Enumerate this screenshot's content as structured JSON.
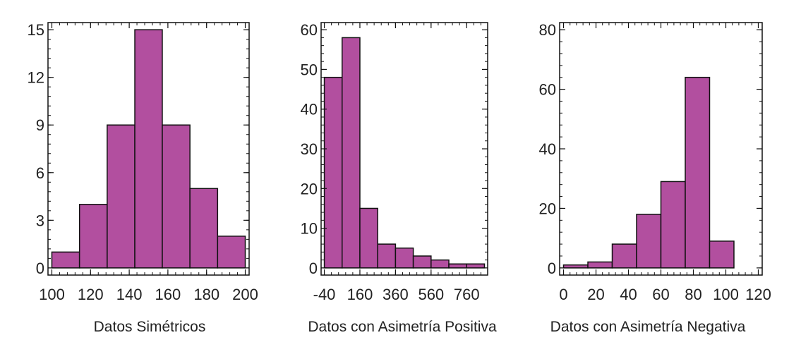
{
  "chart_data": [
    {
      "type": "bar",
      "xlabel": "Datos Simétricos",
      "bins": [
        [
          100,
          114.3
        ],
        [
          114.3,
          128.6
        ],
        [
          128.6,
          142.9
        ],
        [
          142.9,
          157.1
        ],
        [
          157.1,
          171.4
        ],
        [
          171.4,
          185.7
        ],
        [
          185.7,
          200
        ]
      ],
      "values": [
        1,
        4,
        9,
        15,
        9,
        5,
        2
      ],
      "xlim": [
        100,
        200
      ],
      "ylim": [
        0,
        15
      ],
      "xticks": [
        100,
        120,
        140,
        160,
        180,
        200
      ],
      "yticks": [
        0,
        3,
        6,
        9,
        12,
        15
      ],
      "bar_color": "#b24f9f"
    },
    {
      "type": "bar",
      "xlabel": "Datos con Asimetría Positiva",
      "bins": [
        [
          -40,
          60
        ],
        [
          60,
          160
        ],
        [
          160,
          260
        ],
        [
          260,
          360
        ],
        [
          360,
          460
        ],
        [
          460,
          560
        ],
        [
          560,
          660
        ],
        [
          660,
          760
        ],
        [
          760,
          860
        ]
      ],
      "values": [
        48,
        58,
        15,
        6,
        5,
        3,
        2,
        1,
        1
      ],
      "xlim": [
        -40,
        860
      ],
      "ylim": [
        0,
        60
      ],
      "xticks": [
        -40,
        160,
        360,
        560,
        760
      ],
      "yticks": [
        0,
        10,
        20,
        30,
        40,
        50,
        60
      ],
      "bar_color": "#b24f9f"
    },
    {
      "type": "bar",
      "xlabel": "Datos con Asimetría Negativa",
      "bins": [
        [
          0,
          15
        ],
        [
          15,
          30
        ],
        [
          30,
          45
        ],
        [
          45,
          60
        ],
        [
          60,
          75
        ],
        [
          75,
          90
        ],
        [
          90,
          105
        ]
      ],
      "values": [
        1,
        2,
        8,
        18,
        29,
        64,
        9
      ],
      "xlim": [
        0,
        120
      ],
      "ylim": [
        0,
        80
      ],
      "xticks": [
        0,
        20,
        40,
        60,
        80,
        100,
        120
      ],
      "yticks": [
        0,
        20,
        40,
        60,
        80
      ],
      "bar_color": "#b24f9f"
    }
  ]
}
